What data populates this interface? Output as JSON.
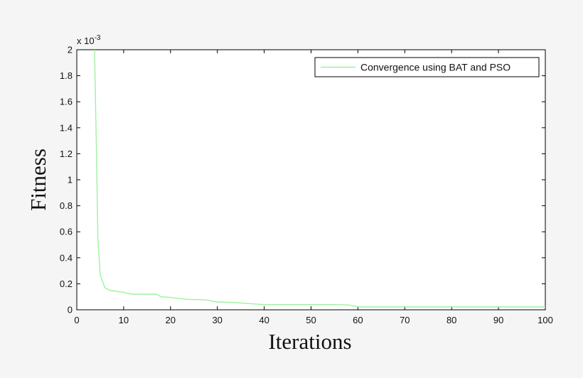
{
  "chart_data": {
    "type": "line",
    "xlabel": "Iterations",
    "ylabel": "Fitness",
    "y_multiplier": "x 10",
    "y_exponent": "-3",
    "xlim": [
      0,
      100
    ],
    "ylim": [
      0,
      2
    ],
    "x_ticks": [
      0,
      10,
      20,
      30,
      40,
      50,
      60,
      70,
      80,
      90,
      100
    ],
    "x_tick_labels": [
      "0",
      "10",
      "20",
      "30",
      "40",
      "50",
      "60",
      "70",
      "80",
      "90",
      "100"
    ],
    "y_ticks": [
      0,
      0.2,
      0.4,
      0.6,
      0.8,
      1,
      1.2,
      1.4,
      1.6,
      1.8,
      2
    ],
    "y_tick_labels": [
      "0",
      "0.2",
      "0.4",
      "0.6",
      "0.8",
      "1",
      "1.2",
      "1.4",
      "1.6",
      "1.8",
      "2"
    ],
    "grid": false,
    "legend_position": "top-right",
    "series": [
      {
        "name": "Convergence using BAT and PSO",
        "color": "#9ef29e",
        "x": [
          3.8,
          4.2,
          4.5,
          5,
          6,
          7,
          8,
          9,
          10,
          11,
          12,
          13,
          14,
          15,
          16,
          17,
          18,
          20,
          22,
          24,
          26,
          28,
          29,
          30,
          32,
          34,
          36,
          38,
          40,
          42,
          45,
          50,
          55,
          58,
          59,
          60,
          65,
          70,
          80,
          90,
          100
        ],
        "y": [
          2.0,
          1.2,
          0.55,
          0.27,
          0.17,
          0.15,
          0.145,
          0.14,
          0.135,
          0.125,
          0.12,
          0.12,
          0.12,
          0.12,
          0.12,
          0.12,
          0.1,
          0.095,
          0.085,
          0.08,
          0.078,
          0.075,
          0.065,
          0.06,
          0.058,
          0.055,
          0.05,
          0.045,
          0.04,
          0.04,
          0.04,
          0.04,
          0.04,
          0.037,
          0.03,
          0.022,
          0.022,
          0.022,
          0.022,
          0.022,
          0.022
        ]
      }
    ]
  }
}
